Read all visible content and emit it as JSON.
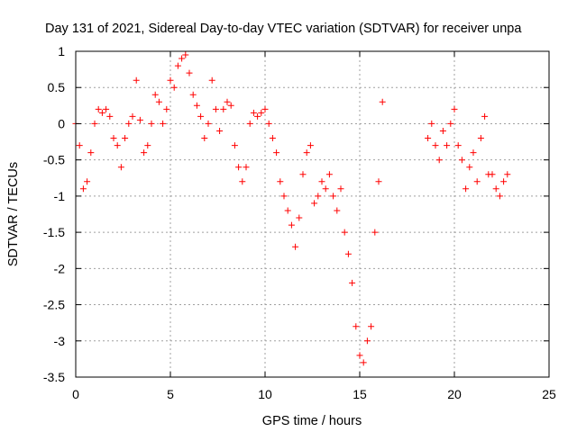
{
  "chart_data": {
    "type": "scatter",
    "title": "Day 131 of 2021, Sidereal Day-to-day VTEC variation (SDTVAR) for receiver unpa",
    "xlabel": "GPS time / hours",
    "ylabel": "SDTVAR / TECUs",
    "xlim": [
      0,
      25
    ],
    "ylim": [
      -3.5,
      1
    ],
    "x_ticks": [
      0,
      5,
      10,
      15,
      20,
      25
    ],
    "x_tick_labels": [
      "0",
      "5",
      "10",
      "15",
      "20",
      "25"
    ],
    "y_ticks": [
      1,
      0.5,
      0,
      -0.5,
      -1,
      -1.5,
      -2,
      -2.5,
      -3,
      -3.5
    ],
    "y_tick_labels": [
      "1",
      "0.5",
      "0",
      "-0.5",
      "-1",
      "-1.5",
      "-2",
      "-2.5",
      "-3",
      "-3.5"
    ],
    "grid": true,
    "marker": "+",
    "series": [
      {
        "name": "SDTVAR",
        "color": "#ff0000",
        "x": [
          0.0,
          0.2,
          0.4,
          0.6,
          0.8,
          1.0,
          1.2,
          1.4,
          1.6,
          1.8,
          2.0,
          2.2,
          2.4,
          2.6,
          2.8,
          3.0,
          3.2,
          3.4,
          3.6,
          3.8,
          4.0,
          4.2,
          4.4,
          4.6,
          4.8,
          5.0,
          5.2,
          5.4,
          5.6,
          5.8,
          6.0,
          6.2,
          6.4,
          6.6,
          6.8,
          7.0,
          7.2,
          7.4,
          7.6,
          7.8,
          8.0,
          8.2,
          8.4,
          8.6,
          8.8,
          9.0,
          9.2,
          9.4,
          9.6,
          9.8,
          10.0,
          10.2,
          10.4,
          10.6,
          10.8,
          11.0,
          11.2,
          11.4,
          11.6,
          11.8,
          12.0,
          12.2,
          12.4,
          12.6,
          12.8,
          13.0,
          13.2,
          13.4,
          13.6,
          13.8,
          14.0,
          14.2,
          14.4,
          14.6,
          14.8,
          15.0,
          15.2,
          15.4,
          15.6,
          15.8,
          16.0,
          16.2,
          18.6,
          18.8,
          19.0,
          19.2,
          19.4,
          19.6,
          19.8,
          20.0,
          20.2,
          20.4,
          20.6,
          20.8,
          21.0,
          21.2,
          21.4,
          21.6,
          21.8,
          22.0,
          22.2,
          22.4,
          22.6,
          22.8
        ],
        "y": [
          0.0,
          -0.3,
          -0.9,
          -0.8,
          -0.4,
          0.0,
          0.2,
          0.15,
          0.2,
          0.1,
          -0.2,
          -0.3,
          -0.6,
          -0.2,
          0.0,
          0.1,
          0.6,
          0.05,
          -0.4,
          -0.3,
          0.0,
          0.4,
          0.3,
          0.0,
          0.2,
          0.6,
          0.5,
          0.8,
          0.9,
          0.95,
          0.7,
          0.4,
          0.25,
          0.1,
          -0.2,
          0.0,
          0.6,
          0.2,
          -0.1,
          0.2,
          0.3,
          0.25,
          -0.3,
          -0.6,
          -0.8,
          -0.6,
          0.0,
          0.15,
          0.1,
          0.15,
          0.2,
          0.0,
          -0.2,
          -0.4,
          -0.8,
          -1.0,
          -1.2,
          -1.4,
          -1.7,
          -1.3,
          -0.7,
          -0.4,
          -0.3,
          -1.1,
          -1.0,
          -0.8,
          -0.9,
          -0.7,
          -1.0,
          -1.2,
          -0.9,
          -1.5,
          -1.8,
          -2.2,
          -2.8,
          -3.2,
          -3.3,
          -3.0,
          -2.8,
          -1.5,
          -0.8,
          0.3,
          -0.2,
          0.0,
          -0.3,
          -0.5,
          -0.1,
          -0.3,
          0.0,
          0.2,
          -0.3,
          -0.5,
          -0.9,
          -0.6,
          -0.4,
          -0.8,
          -0.2,
          0.1,
          -0.7,
          -0.7,
          -0.9,
          -1.0,
          -0.8,
          -0.7
        ]
      }
    ]
  }
}
